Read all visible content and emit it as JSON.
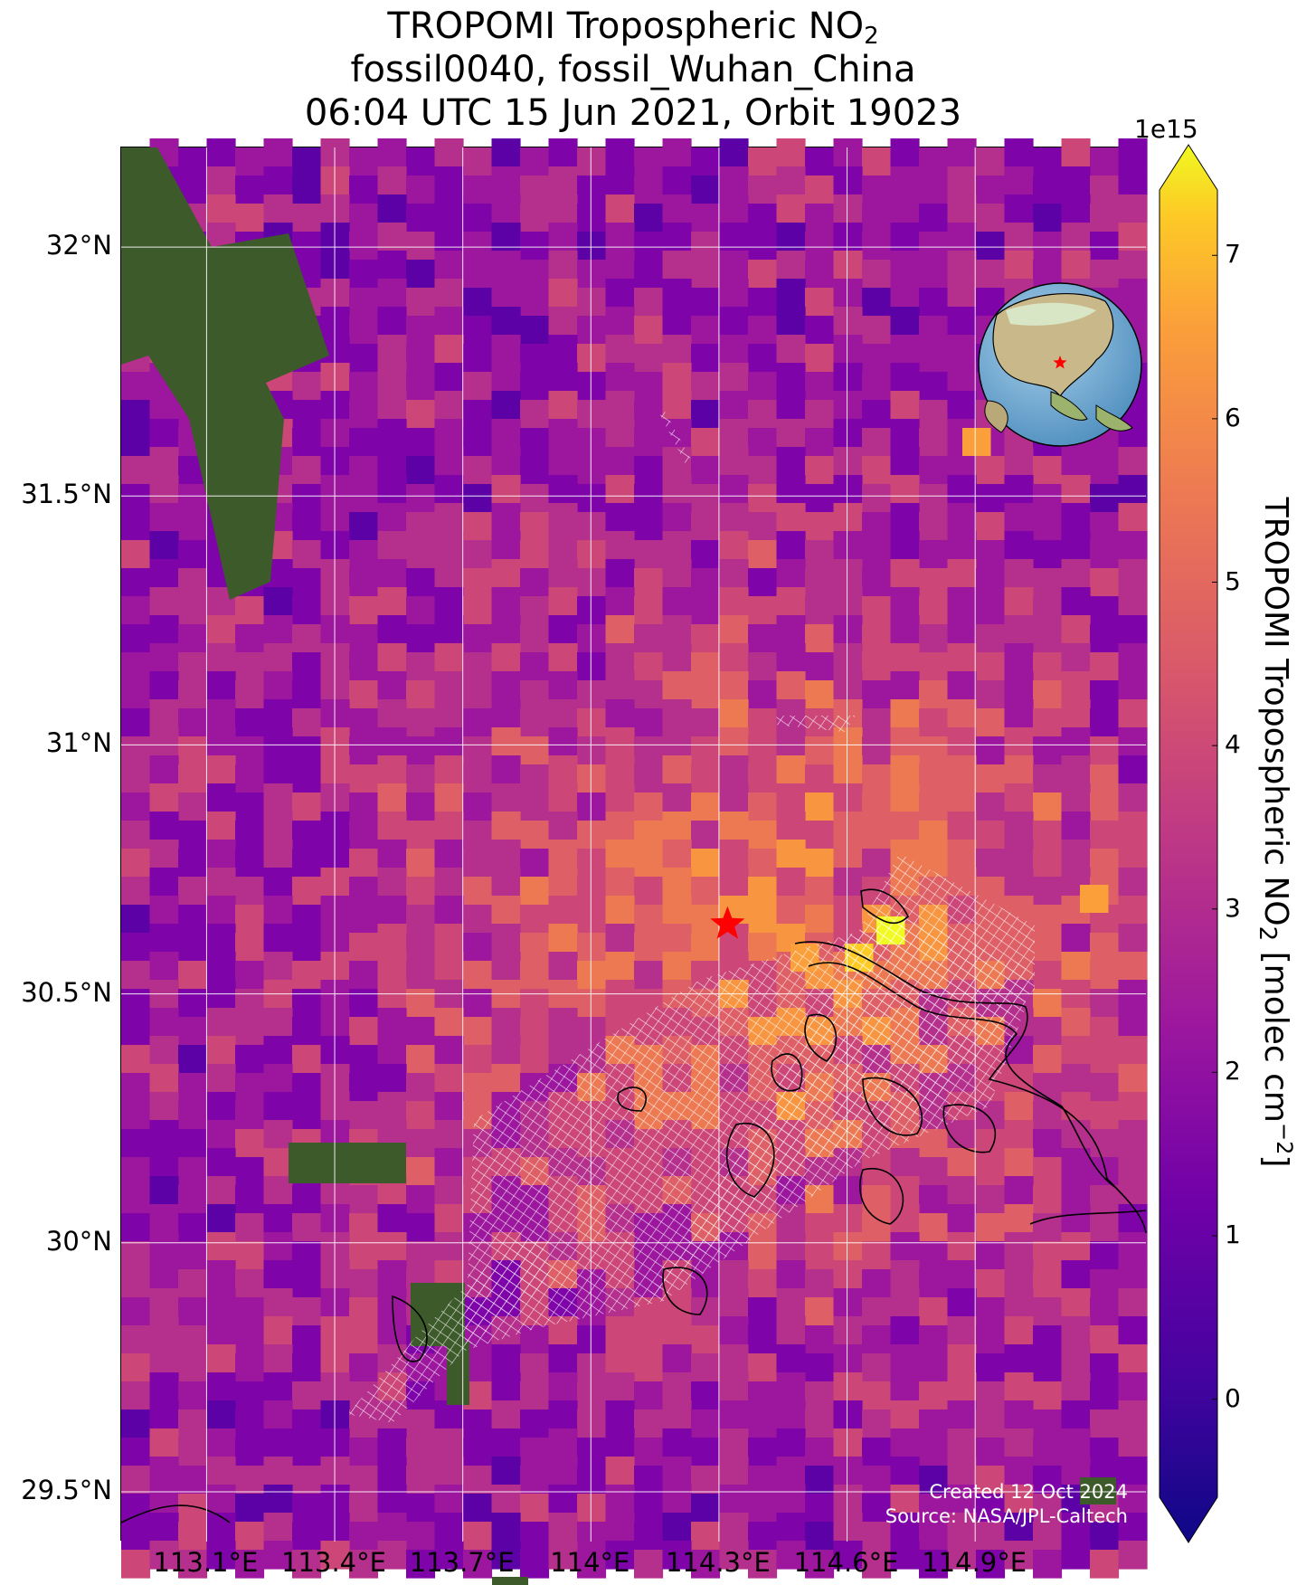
{
  "title": {
    "line1_main": "TROPOMI Tropospheric NO",
    "line1_sub": "2",
    "line2": "fossil0040, fossil_Wuhan_China",
    "line3": "06:04 UTC 15 Jun 2021, Orbit 19023"
  },
  "map": {
    "lon_range": [
      112.9,
      115.3
    ],
    "lat_range": [
      29.4,
      32.2
    ],
    "lat_ticks": [
      {
        "value": 32.0,
        "label": "32°N"
      },
      {
        "value": 31.5,
        "label": "31.5°N"
      },
      {
        "value": 31.0,
        "label": "31°N"
      },
      {
        "value": 30.5,
        "label": "30.5°N"
      },
      {
        "value": 30.0,
        "label": "30°N"
      },
      {
        "value": 29.5,
        "label": "29.5°N"
      }
    ],
    "lon_ticks": [
      {
        "value": 113.1,
        "label": "113.1°E"
      },
      {
        "value": 113.4,
        "label": "113.4°E"
      },
      {
        "value": 113.7,
        "label": "113.7°E"
      },
      {
        "value": 114.0,
        "label": "114°E"
      },
      {
        "value": 114.3,
        "label": "114.3°E"
      },
      {
        "value": 114.6,
        "label": "114.6°E"
      },
      {
        "value": 114.9,
        "label": "114.9°E"
      }
    ],
    "target": {
      "lon": 114.32,
      "lat": 30.64,
      "marker": "red-star"
    },
    "inset": {
      "type": "globe",
      "marker": "red-star"
    },
    "credit_line1": "Created 12 Oct 2024",
    "credit_line2": "Source: NASA/JPL-Caltech"
  },
  "colorbar": {
    "exponent_label": "1e15",
    "ticks": [
      "0",
      "1",
      "2",
      "3",
      "4",
      "5",
      "6",
      "7"
    ],
    "min": -0.6,
    "max": 7.4,
    "extend": "both",
    "colormap": "plasma",
    "label_main": "TROPOMI Tropospheric NO",
    "label_sub": "2",
    "label_unit_main": " [molec cm",
    "label_unit_sup": "−2",
    "label_unit_end": "]"
  },
  "colors": {
    "grid": "#ffffff",
    "target_marker": "#ff0000",
    "land": "#3d5a2a"
  }
}
